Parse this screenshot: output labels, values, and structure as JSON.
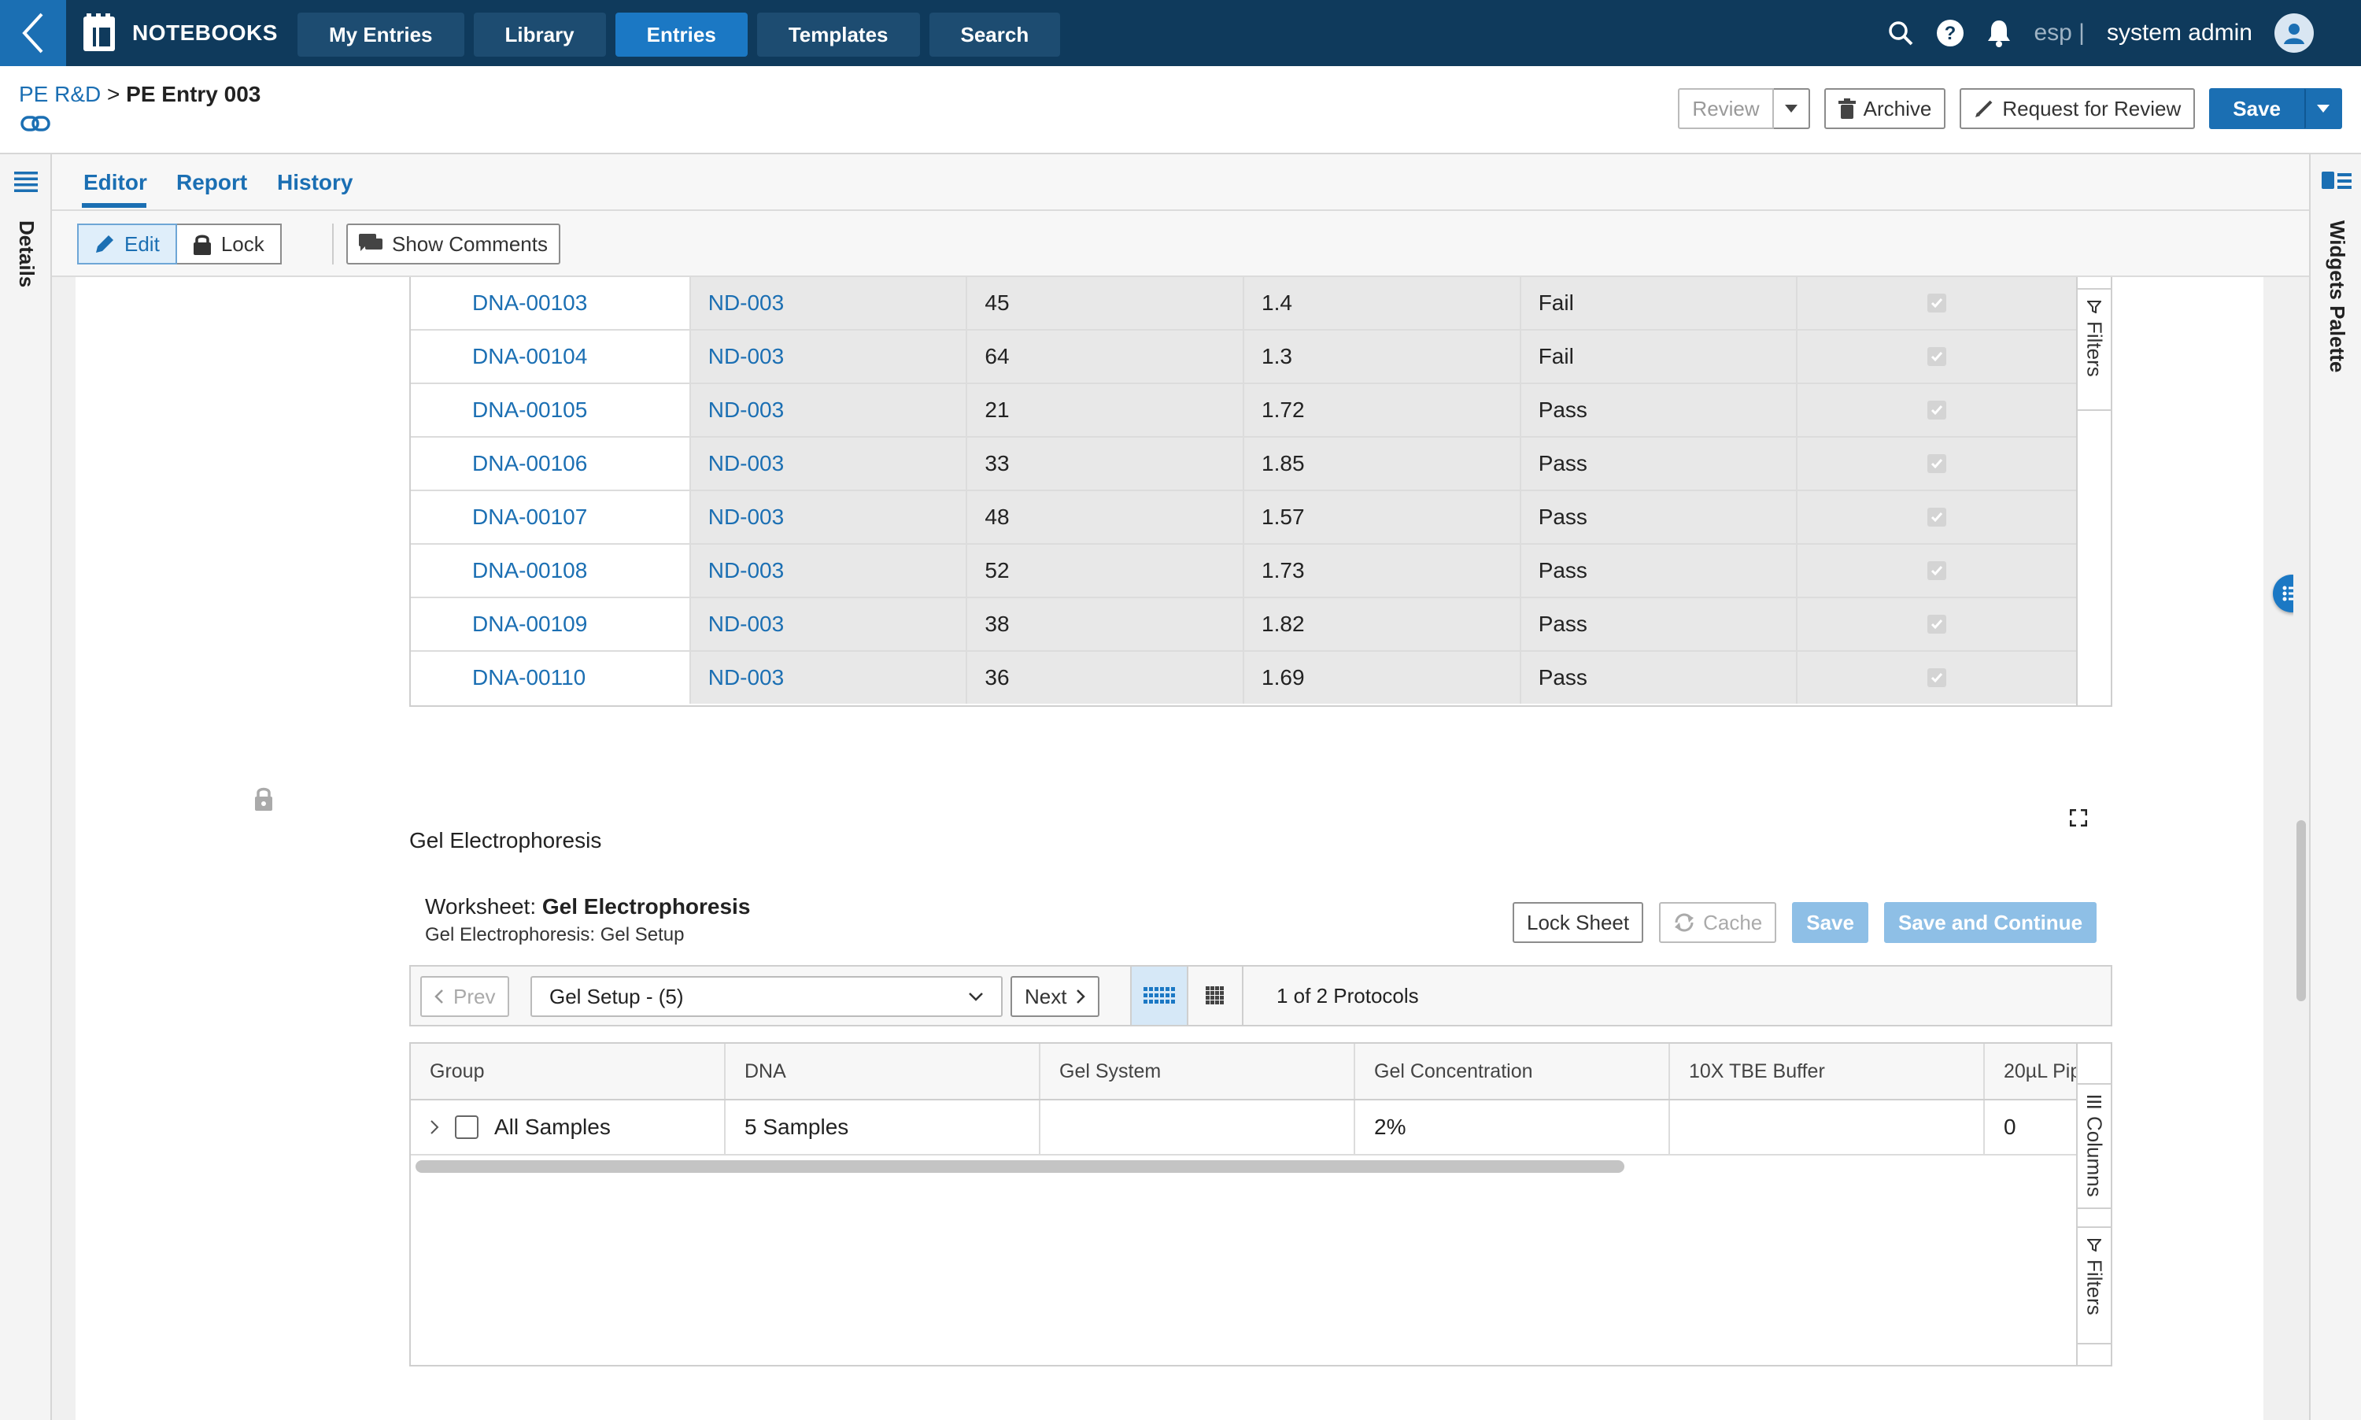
{
  "app": {
    "name": "NOTEBOOKS",
    "nav_tabs": [
      "My Entries",
      "Library",
      "Entries",
      "Templates",
      "Search"
    ],
    "active_tab": "Entries",
    "locale": "esp |",
    "user": "system admin",
    "accent": "#1b6fb3",
    "nav_bg": "#0f3a5c"
  },
  "header": {
    "breadcrumb_parent": "PE R&D",
    "breadcrumb_sep": " > ",
    "breadcrumb_current": "PE Entry 003",
    "review_label": "Review",
    "archive_label": "Archive",
    "request_review_label": "Request for Review",
    "save_label": "Save"
  },
  "left_rail": {
    "label": "Details"
  },
  "right_rail": {
    "label": "Widgets Palette"
  },
  "subtabs": [
    "Editor",
    "Report",
    "History"
  ],
  "toolbar": {
    "edit_label": "Edit",
    "lock_label": "Lock",
    "show_comments_label": "Show Comments"
  },
  "top_table": {
    "rows": [
      [
        "DNA-00103",
        "ND-003",
        "45",
        "1.4",
        "Fail"
      ],
      [
        "DNA-00104",
        "ND-003",
        "64",
        "1.3",
        "Fail"
      ],
      [
        "DNA-00105",
        "ND-003",
        "21",
        "1.72",
        "Pass"
      ],
      [
        "DNA-00106",
        "ND-003",
        "33",
        "1.85",
        "Pass"
      ],
      [
        "DNA-00107",
        "ND-003",
        "48",
        "1.57",
        "Pass"
      ],
      [
        "DNA-00108",
        "ND-003",
        "52",
        "1.73",
        "Pass"
      ],
      [
        "DNA-00109",
        "ND-003",
        "38",
        "1.82",
        "Pass"
      ],
      [
        "DNA-00110",
        "ND-003",
        "36",
        "1.69",
        "Pass"
      ]
    ],
    "filters_label": "Filters"
  },
  "gel": {
    "section_title": "Gel Electrophoresis",
    "worksheet_prefix": "Worksheet: ",
    "worksheet_name": "Gel Electrophoresis",
    "worksheet_sub": "Gel Electrophoresis: Gel Setup",
    "lock_sheet_label": "Lock Sheet",
    "cache_label": "Cache",
    "save_label": "Save",
    "save_continue_label": "Save and Continue",
    "prev_label": "Prev",
    "next_label": "Next",
    "protocol_selected": "Gel Setup - (5)",
    "protocol_count": "1 of 2 Protocols",
    "columns": [
      "Group",
      "DNA",
      "Gel System",
      "Gel Concentration",
      "10X TBE Buffer",
      "20µL Pip"
    ],
    "row": [
      "All Samples",
      "5 Samples",
      "",
      "2%",
      "",
      "0"
    ],
    "columns_label": "Columns",
    "filters_label": "Filters"
  }
}
